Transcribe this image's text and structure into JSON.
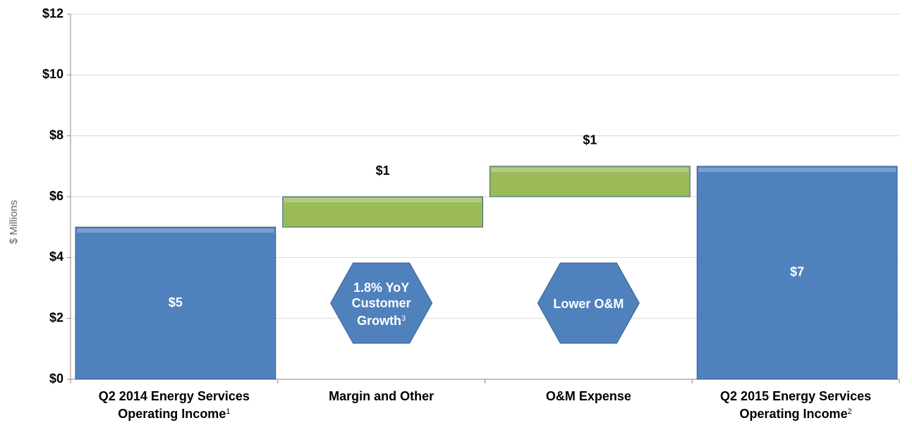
{
  "chart_data": {
    "type": "waterfall",
    "y_label": "$ Millions",
    "categories": [
      "Q2 2014 Energy Services Operating Income",
      "Margin and Other",
      "O&M Expense",
      "Q2 2015 Energy Services Operating Income"
    ],
    "category_footnotes": [
      "1",
      null,
      null,
      "2"
    ],
    "values": [
      5,
      1,
      1,
      7
    ],
    "value_labels": [
      "$5",
      "$1",
      "$1",
      "$7"
    ],
    "measure": [
      "absolute",
      "relative",
      "relative",
      "absolute"
    ],
    "colors": [
      "#4f81bd",
      "#9bbb59",
      "#9bbb59",
      "#4f81bd"
    ],
    "ylim": [
      0,
      12
    ],
    "yticks": [
      {
        "value": 0,
        "label": "$0"
      },
      {
        "value": 2,
        "label": "$2"
      },
      {
        "value": 4,
        "label": "$4"
      },
      {
        "value": 6,
        "label": "$6"
      },
      {
        "value": 8,
        "label": "$8"
      },
      {
        "value": 10,
        "label": "$10"
      },
      {
        "value": 12,
        "label": "$12"
      }
    ],
    "grid": true,
    "annotations": [
      {
        "text": "1.8% YoY Customer Growth",
        "footnote": "3",
        "category": 1
      },
      {
        "text": "Lower O&M",
        "category": 2
      }
    ]
  }
}
